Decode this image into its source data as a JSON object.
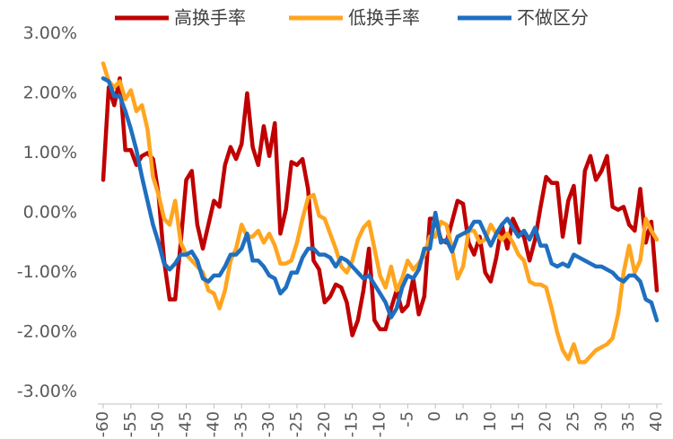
{
  "chart_data": {
    "type": "line",
    "x": [
      -60,
      -59,
      -58,
      -57,
      -56,
      -55,
      -54,
      -53,
      -52,
      -51,
      -50,
      -49,
      -48,
      -47,
      -46,
      -45,
      -44,
      -43,
      -42,
      -41,
      -40,
      -39,
      -38,
      -37,
      -36,
      -35,
      -34,
      -33,
      -32,
      -31,
      -30,
      -29,
      -28,
      -27,
      -26,
      -25,
      -24,
      -23,
      -22,
      -21,
      -20,
      -19,
      -18,
      -17,
      -16,
      -15,
      -14,
      -13,
      -12,
      -11,
      -10,
      -9,
      -8,
      -7,
      -6,
      -5,
      -4,
      -3,
      -2,
      -1,
      0,
      1,
      2,
      3,
      4,
      5,
      6,
      7,
      8,
      9,
      10,
      11,
      12,
      13,
      14,
      15,
      16,
      17,
      18,
      19,
      20,
      21,
      22,
      23,
      24,
      25,
      26,
      27,
      28,
      29,
      30,
      31,
      32,
      33,
      34,
      35,
      36,
      37,
      38,
      39,
      40
    ],
    "series": [
      {
        "name": "高换手率",
        "color": "#c00000",
        "values": [
          0.55,
          2.1,
          1.8,
          2.25,
          1.05,
          1.05,
          0.8,
          0.95,
          1.0,
          0.9,
          0.3,
          -0.8,
          -1.45,
          -1.45,
          -0.5,
          0.55,
          0.7,
          -0.2,
          -0.6,
          -0.2,
          0.2,
          0.1,
          0.8,
          1.1,
          0.9,
          1.15,
          2.0,
          1.1,
          0.8,
          1.45,
          0.95,
          1.5,
          -0.35,
          0.05,
          0.85,
          0.8,
          0.9,
          0.4,
          -0.8,
          -0.95,
          -1.5,
          -1.4,
          -1.2,
          -1.25,
          -1.5,
          -2.05,
          -1.8,
          -1.3,
          -0.6,
          -1.8,
          -1.95,
          -1.95,
          -1.6,
          -1.3,
          -1.65,
          -1.55,
          -1.1,
          -1.7,
          -1.4,
          -0.1,
          -0.1,
          -0.45,
          -0.5,
          -0.15,
          0.2,
          0.15,
          -0.5,
          -0.7,
          -0.4,
          -1.0,
          -1.15,
          -0.75,
          -0.2,
          -0.6,
          -0.1,
          -0.3,
          -0.4,
          -0.8,
          -0.45,
          0.1,
          0.6,
          0.5,
          0.5,
          -0.4,
          0.2,
          0.45,
          -0.5,
          0.7,
          0.95,
          0.55,
          0.7,
          0.95,
          0.1,
          0.05,
          0.1,
          -0.2,
          -0.3,
          0.4,
          -0.5,
          -0.15,
          -1.3
        ]
      },
      {
        "name": "低换手率",
        "color": "#ffa51f",
        "values": [
          2.5,
          2.2,
          2.1,
          2.2,
          1.9,
          2.05,
          1.7,
          1.8,
          1.4,
          0.6,
          0.3,
          -0.1,
          -0.2,
          0.2,
          -0.5,
          -0.7,
          -0.8,
          -0.9,
          -1.0,
          -1.3,
          -1.35,
          -1.6,
          -1.3,
          -0.8,
          -0.6,
          -0.2,
          -0.4,
          -0.4,
          -0.3,
          -0.5,
          -0.35,
          -0.55,
          -0.85,
          -0.85,
          -0.8,
          -0.5,
          -0.1,
          0.25,
          0.3,
          -0.05,
          -0.1,
          -0.35,
          -0.6,
          -0.9,
          -1.0,
          -0.8,
          -0.45,
          -0.25,
          -0.15,
          -0.6,
          -1.05,
          -1.25,
          -0.9,
          -1.3,
          -1.1,
          -0.8,
          -0.95,
          -0.85,
          -0.7,
          -0.4,
          -0.4,
          -0.15,
          -0.2,
          -0.6,
          -1.1,
          -0.9,
          -0.3,
          -0.3,
          -0.5,
          -0.45,
          -0.2,
          -0.35,
          -0.45,
          -0.35,
          -0.5,
          -0.7,
          -0.8,
          -1.15,
          -1.2,
          -1.2,
          -1.25,
          -1.6,
          -2.0,
          -2.3,
          -2.45,
          -2.2,
          -2.5,
          -2.5,
          -2.4,
          -2.3,
          -2.25,
          -2.2,
          -2.1,
          -1.7,
          -1.0,
          -0.55,
          -1.0,
          -0.8,
          -0.1,
          -0.3,
          -0.45
        ]
      },
      {
        "name": "不做区分",
        "color": "#1f6fc0",
        "values": [
          2.25,
          2.2,
          1.95,
          1.95,
          1.7,
          1.4,
          1.05,
          0.6,
          0.2,
          -0.2,
          -0.5,
          -0.85,
          -0.95,
          -0.85,
          -0.7,
          -0.7,
          -0.65,
          -0.8,
          -1.1,
          -1.15,
          -1.05,
          -1.05,
          -0.9,
          -0.7,
          -0.7,
          -0.6,
          -0.35,
          -0.8,
          -0.8,
          -0.9,
          -1.05,
          -1.1,
          -1.35,
          -1.25,
          -1.0,
          -1.0,
          -0.75,
          -0.6,
          -0.6,
          -0.7,
          -0.7,
          -0.75,
          -0.9,
          -0.75,
          -0.8,
          -0.9,
          -1.0,
          -1.1,
          -1.05,
          -1.2,
          -1.35,
          -1.5,
          -1.75,
          -1.6,
          -1.25,
          -1.05,
          -1.1,
          -0.95,
          -0.6,
          -0.6,
          0.0,
          -0.5,
          -0.45,
          -0.65,
          -0.4,
          -0.35,
          -0.3,
          -0.15,
          -0.15,
          -0.35,
          -0.55,
          -0.35,
          -0.2,
          -0.1,
          -0.25,
          -0.4,
          -0.3,
          -0.45,
          -0.25,
          -0.55,
          -0.55,
          -0.85,
          -0.9,
          -0.85,
          -0.9,
          -0.7,
          -0.75,
          -0.8,
          -0.85,
          -0.9,
          -0.9,
          -0.95,
          -1.0,
          -1.1,
          -1.15,
          -1.05,
          -1.05,
          -1.15,
          -1.45,
          -1.5,
          -1.8
        ]
      }
    ],
    "xlim": [
      -60,
      40
    ],
    "xticks": [
      -60,
      -55,
      -50,
      -45,
      -40,
      -35,
      -30,
      -25,
      -20,
      -15,
      -10,
      -5,
      0,
      5,
      10,
      15,
      20,
      25,
      30,
      35,
      40
    ],
    "ylim": [
      -3.2,
      3.2
    ],
    "yticks": [
      {
        "value": -3,
        "label": "-3.00%"
      },
      {
        "value": -2,
        "label": "-2.00%"
      },
      {
        "value": -1,
        "label": "-1.00%"
      },
      {
        "value": 0,
        "label": "0.00%"
      },
      {
        "value": 1,
        "label": "1.00%"
      },
      {
        "value": 2,
        "label": "2.00%"
      },
      {
        "value": 3,
        "label": "3.00%"
      }
    ],
    "legend": "top"
  }
}
